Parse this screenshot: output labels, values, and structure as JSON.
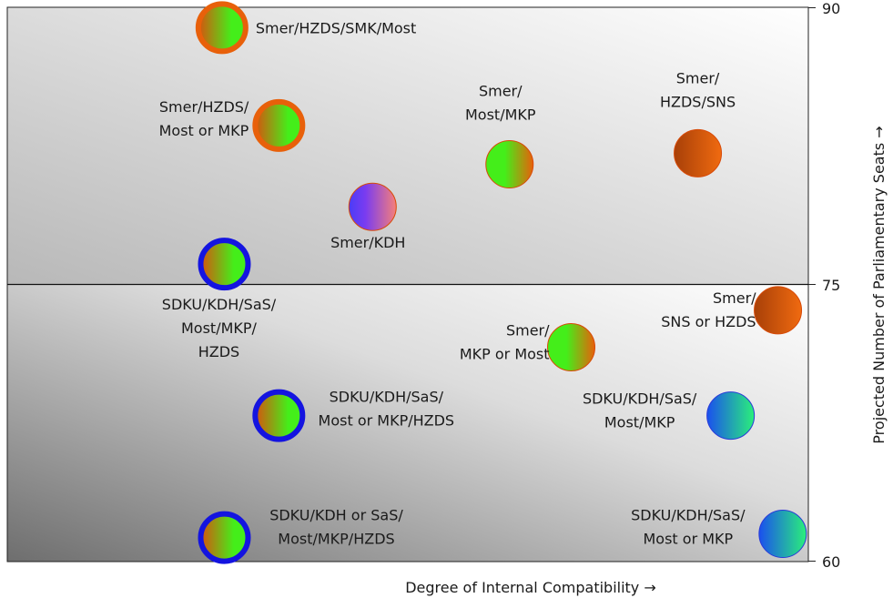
{
  "chart_data": {
    "type": "scatter",
    "xlabel": "Degree of Internal Compatibility →",
    "ylabel": "Projected Number of Parliamentary Seats →",
    "xlim": [
      0,
      100
    ],
    "ylim": [
      60,
      90
    ],
    "y_ticks": [
      "90",
      "75",
      "60"
    ],
    "reference_line_y": 75,
    "grid": false,
    "colors": {
      "orange": "#e8600a",
      "blue": "#1414e0",
      "green": "#44ee1a",
      "dark_orange": "#c84a00",
      "pink": "#f0708a",
      "violet": "#5a32f5",
      "cyan_blue": "#1a6aee"
    },
    "points": [
      {
        "label_lines": [
          "Smer/HZDS/SMK/Most"
        ],
        "x": 26.8,
        "y": 88.9,
        "fill": "orange-green",
        "ring": "orange"
      },
      {
        "label_lines": [
          "Smer/HZDS/",
          "Most or MKP"
        ],
        "x": 33.9,
        "y": 83.6,
        "fill": "orange-green",
        "ring": "orange"
      },
      {
        "label_lines": [
          "Smer/",
          "Most/MKP"
        ],
        "x": 62.7,
        "y": 81.5,
        "fill": "green-orange",
        "ring": "none"
      },
      {
        "label_lines": [
          "Smer/",
          "HZDS/SNS"
        ],
        "x": 86.2,
        "y": 82.1,
        "fill": "orange-dark",
        "ring": "none"
      },
      {
        "label_lines": [
          "Smer/KDH"
        ],
        "x": 45.6,
        "y": 79.2,
        "fill": "violet-pink",
        "ring": "none"
      },
      {
        "label_lines": [
          "SDKU/KDH/SaS/",
          "Most/MKP/",
          "HZDS"
        ],
        "x": 27.1,
        "y": 76.1,
        "fill": "orange-green",
        "ring": "blue"
      },
      {
        "label_lines": [
          "Smer/",
          "SNS or HZDS"
        ],
        "x": 96.2,
        "y": 73.6,
        "fill": "orange-dark",
        "ring": "none"
      },
      {
        "label_lines": [
          "Smer/",
          "MKP or Most"
        ],
        "x": 70.4,
        "y": 71.6,
        "fill": "green-orange",
        "ring": "none"
      },
      {
        "label_lines": [
          "SDKU/KDH/SaS/",
          "Most or MKP/HZDS"
        ],
        "x": 33.9,
        "y": 67.9,
        "fill": "orange-green",
        "ring": "blue"
      },
      {
        "label_lines": [
          "SDKU/KDH/SaS/",
          "Most/MKP"
        ],
        "x": 90.3,
        "y": 67.9,
        "fill": "blue-green",
        "ring": "none"
      },
      {
        "label_lines": [
          "SDKU/KDH or SaS/",
          "Most/MKP/HZDS"
        ],
        "x": 27.1,
        "y": 61.3,
        "fill": "orange-green",
        "ring": "blue"
      },
      {
        "label_lines": [
          "SDKU/KDH/SaS/",
          "Most or MKP"
        ],
        "x": 96.8,
        "y": 61.5,
        "fill": "blue-green",
        "ring": "none"
      }
    ]
  }
}
